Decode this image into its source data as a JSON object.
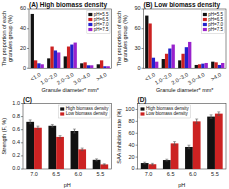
{
  "chart_data": [
    {
      "type": "bar",
      "title": "(A) High biomass density",
      "x_label": "Granule diameter* mm*",
      "y_label": "The proportion of each\ngranules group (%)",
      "categories": [
        "<1.0",
        "1.0~2.0",
        "2.0~3.0",
        "3.0~4.0",
        ">4.0"
      ],
      "series": [
        {
          "name": "pH=5.5",
          "color": "#111111",
          "values": [
            55,
            10,
            12,
            5,
            4
          ]
        },
        {
          "name": "pH=6.5",
          "color": "#cc2222",
          "values": [
            8,
            22,
            22,
            6,
            8
          ]
        },
        {
          "name": "pH=7.0",
          "color": "#2222cc",
          "values": [
            5,
            18,
            24,
            3,
            2
          ]
        },
        {
          "name": "pH=7.5",
          "color": "#9922cc",
          "values": [
            4,
            16,
            26,
            3,
            2
          ]
        }
      ],
      "ylim": [
        0,
        60
      ],
      "yticks": [
        0,
        20,
        40,
        60
      ],
      "legend": "upper-right"
    },
    {
      "type": "bar",
      "title": "(B) Low biomass density",
      "x_label": "Granule diameter* mm*",
      "y_label": "The proportion of each\ngranules group (%)",
      "categories": [
        "<1.0",
        "1.0~2.0",
        "2.0~3.0",
        "3.0~4.0",
        ">4.0"
      ],
      "series": [
        {
          "name": "pH=5.5",
          "color": "#111111",
          "values": [
            80,
            14,
            12,
            5,
            10
          ]
        },
        {
          "name": "pH=6.5",
          "color": "#cc2222",
          "values": [
            68,
            22,
            22,
            6,
            9
          ]
        },
        {
          "name": "pH=7.0",
          "color": "#2222cc",
          "values": [
            16,
            30,
            32,
            7,
            5
          ]
        },
        {
          "name": "pH=7.5",
          "color": "#9922cc",
          "values": [
            10,
            36,
            40,
            8,
            8
          ]
        }
      ],
      "ylim": [
        0,
        90
      ],
      "yticks": [
        0,
        30,
        60,
        90
      ],
      "legend": "upper-right"
    },
    {
      "type": "bar",
      "title": "(C)",
      "x_label": "pH",
      "y_label": "Strength (F, %)",
      "categories": [
        "7.0",
        "6.5",
        "6.0",
        "5.5"
      ],
      "series": [
        {
          "name": "High biomass density",
          "color": "#111111",
          "values": [
            0.72,
            0.66,
            0.58,
            0.14
          ],
          "errors": [
            0.03,
            0.02,
            0.03,
            0.015
          ]
        },
        {
          "name": "Low biomass density",
          "color": "#cc2222",
          "values": [
            0.63,
            0.49,
            0.3,
            0.07
          ],
          "errors": [
            0.025,
            0.02,
            0.02,
            0.01
          ]
        }
      ],
      "ylim": [
        0.0,
        1.0
      ],
      "yticks": [
        {
          "value": 0,
          "label": "0.0"
        },
        0.2,
        0.4,
        0.6,
        0.8,
        {
          "value": 1,
          "label": "1.0"
        }
      ],
      "legend": "upper-right"
    },
    {
      "type": "bar",
      "title": "(D)",
      "x_label": "pH",
      "y_label": "SAA inhibition rate (%)",
      "categories": [
        "7.0",
        "6.5",
        "6.0",
        "5.5"
      ],
      "series": [
        {
          "name": "High biomass density",
          "color": "#111111",
          "values": [
            10,
            15,
            37,
            88
          ],
          "errors": [
            1.5,
            1.5,
            3.0,
            3.0
          ]
        },
        {
          "name": "Low biomass density",
          "color": "#cc2222",
          "values": [
            8,
            43,
            80,
            93
          ],
          "errors": [
            1.5,
            3.0,
            4.0,
            3.0
          ]
        }
      ],
      "ylim": [
        0,
        110
      ],
      "yticks": [
        0,
        20,
        40,
        60,
        80,
        100
      ],
      "legend": "upper-left"
    }
  ]
}
